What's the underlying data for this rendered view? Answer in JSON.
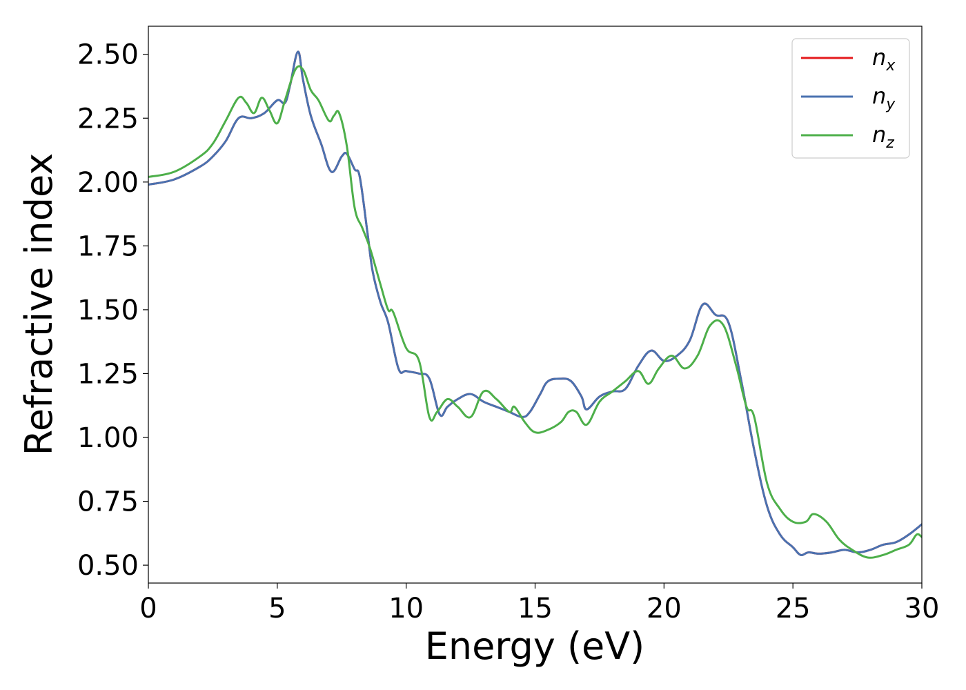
{
  "chart_data": {
    "type": "line",
    "xlabel": "Energy (eV)",
    "ylabel": "Refractive index",
    "xlim": [
      0,
      30
    ],
    "ylim": [
      0.43,
      2.61
    ],
    "xticks": [
      0,
      5,
      10,
      15,
      20,
      25,
      30
    ],
    "yticks": [
      0.5,
      0.75,
      1.0,
      1.25,
      1.5,
      1.75,
      2.0,
      2.25,
      2.5
    ],
    "x_tick_labels": [
      "0",
      "5",
      "10",
      "15",
      "20",
      "25",
      "30"
    ],
    "y_tick_labels": [
      "0.50",
      "0.75",
      "1.00",
      "1.25",
      "1.50",
      "1.75",
      "2.00",
      "2.25",
      "2.50"
    ],
    "grid": false,
    "legend_position": "top-right",
    "series": [
      {
        "name": "n_x",
        "legend_base": "n",
        "legend_sub": "x",
        "color": "#e41a1c",
        "x": [
          0,
          1,
          2,
          2.5,
          3,
          3.5,
          4,
          4.5,
          5,
          5.3,
          5.5,
          5.8,
          6,
          6.3,
          6.7,
          7.1,
          7.5,
          7.7,
          8,
          8.2,
          8.5,
          8.7,
          9,
          9.3,
          9.7,
          10,
          10.5,
          10.9,
          11.3,
          11.6,
          12,
          12.5,
          13,
          13.5,
          14,
          14.5,
          14.8,
          15.2,
          15.5,
          16,
          16.4,
          16.8,
          17,
          17.5,
          18,
          18.5,
          19,
          19.5,
          20,
          20.5,
          21,
          21.5,
          22,
          22.5,
          23,
          23.5,
          24,
          24.5,
          25,
          25.3,
          25.6,
          26,
          26.5,
          27,
          27.5,
          28,
          28.5,
          29,
          29.5,
          30
        ],
        "y": [
          1.99,
          2.01,
          2.06,
          2.1,
          2.16,
          2.25,
          2.25,
          2.27,
          2.32,
          2.31,
          2.38,
          2.51,
          2.4,
          2.26,
          2.15,
          2.04,
          2.1,
          2.11,
          2.05,
          2.02,
          1.8,
          1.65,
          1.53,
          1.45,
          1.27,
          1.26,
          1.25,
          1.23,
          1.09,
          1.12,
          1.15,
          1.17,
          1.14,
          1.12,
          1.1,
          1.08,
          1.1,
          1.17,
          1.22,
          1.23,
          1.22,
          1.16,
          1.11,
          1.16,
          1.18,
          1.19,
          1.28,
          1.34,
          1.3,
          1.32,
          1.38,
          1.52,
          1.48,
          1.45,
          1.22,
          0.95,
          0.73,
          0.62,
          0.57,
          0.54,
          0.55,
          0.545,
          0.55,
          0.56,
          0.55,
          0.56,
          0.58,
          0.59,
          0.62,
          0.66
        ]
      },
      {
        "name": "n_y",
        "legend_base": "n",
        "legend_sub": "y",
        "color": "#4a72b0",
        "x": [
          0,
          1,
          2,
          2.5,
          3,
          3.5,
          4,
          4.5,
          5,
          5.3,
          5.5,
          5.8,
          6,
          6.3,
          6.7,
          7.1,
          7.5,
          7.7,
          8,
          8.2,
          8.5,
          8.7,
          9,
          9.3,
          9.7,
          10,
          10.5,
          10.9,
          11.3,
          11.6,
          12,
          12.5,
          13,
          13.5,
          14,
          14.5,
          14.8,
          15.2,
          15.5,
          16,
          16.4,
          16.8,
          17,
          17.5,
          18,
          18.5,
          19,
          19.5,
          20,
          20.5,
          21,
          21.5,
          22,
          22.5,
          23,
          23.5,
          24,
          24.5,
          25,
          25.3,
          25.6,
          26,
          26.5,
          27,
          27.5,
          28,
          28.5,
          29,
          29.5,
          30
        ],
        "y": [
          1.99,
          2.01,
          2.06,
          2.1,
          2.16,
          2.25,
          2.25,
          2.27,
          2.32,
          2.31,
          2.38,
          2.51,
          2.4,
          2.26,
          2.15,
          2.04,
          2.1,
          2.11,
          2.05,
          2.02,
          1.8,
          1.65,
          1.53,
          1.45,
          1.27,
          1.26,
          1.25,
          1.23,
          1.09,
          1.12,
          1.15,
          1.17,
          1.14,
          1.12,
          1.1,
          1.08,
          1.1,
          1.17,
          1.22,
          1.23,
          1.22,
          1.16,
          1.11,
          1.16,
          1.18,
          1.19,
          1.28,
          1.34,
          1.3,
          1.32,
          1.38,
          1.52,
          1.48,
          1.45,
          1.22,
          0.95,
          0.73,
          0.62,
          0.57,
          0.54,
          0.55,
          0.545,
          0.55,
          0.56,
          0.55,
          0.56,
          0.58,
          0.59,
          0.62,
          0.66
        ]
      },
      {
        "name": "n_z",
        "legend_base": "n",
        "legend_sub": "z",
        "color": "#4daf4a",
        "x": [
          0,
          1,
          2,
          2.5,
          3,
          3.5,
          3.8,
          4.1,
          4.4,
          4.7,
          5,
          5.3,
          5.7,
          6,
          6.3,
          6.6,
          7,
          7.2,
          7.4,
          7.7,
          8,
          8.3,
          8.6,
          9,
          9.3,
          9.5,
          10,
          10.5,
          10.9,
          11.2,
          11.6,
          12,
          12.5,
          13,
          13.5,
          14,
          14.2,
          14.6,
          15,
          15.5,
          16,
          16.3,
          16.6,
          17,
          17.5,
          18,
          18.5,
          19,
          19.4,
          19.8,
          20.3,
          20.8,
          21.3,
          21.8,
          22.3,
          22.8,
          23.2,
          23.5,
          24,
          24.5,
          25,
          25.5,
          25.8,
          26.3,
          26.8,
          27.3,
          27.9,
          28.5,
          29,
          29.5,
          29.8,
          30
        ],
        "y": [
          2.02,
          2.04,
          2.1,
          2.15,
          2.24,
          2.33,
          2.31,
          2.27,
          2.33,
          2.28,
          2.23,
          2.32,
          2.44,
          2.44,
          2.36,
          2.32,
          2.24,
          2.26,
          2.27,
          2.14,
          1.9,
          1.82,
          1.74,
          1.6,
          1.5,
          1.49,
          1.35,
          1.3,
          1.08,
          1.1,
          1.15,
          1.12,
          1.08,
          1.18,
          1.15,
          1.1,
          1.12,
          1.06,
          1.02,
          1.03,
          1.06,
          1.1,
          1.1,
          1.05,
          1.14,
          1.18,
          1.22,
          1.26,
          1.21,
          1.27,
          1.32,
          1.27,
          1.32,
          1.44,
          1.44,
          1.28,
          1.12,
          1.08,
          0.82,
          0.72,
          0.67,
          0.67,
          0.7,
          0.67,
          0.6,
          0.56,
          0.53,
          0.54,
          0.56,
          0.58,
          0.62,
          0.61
        ]
      }
    ]
  }
}
